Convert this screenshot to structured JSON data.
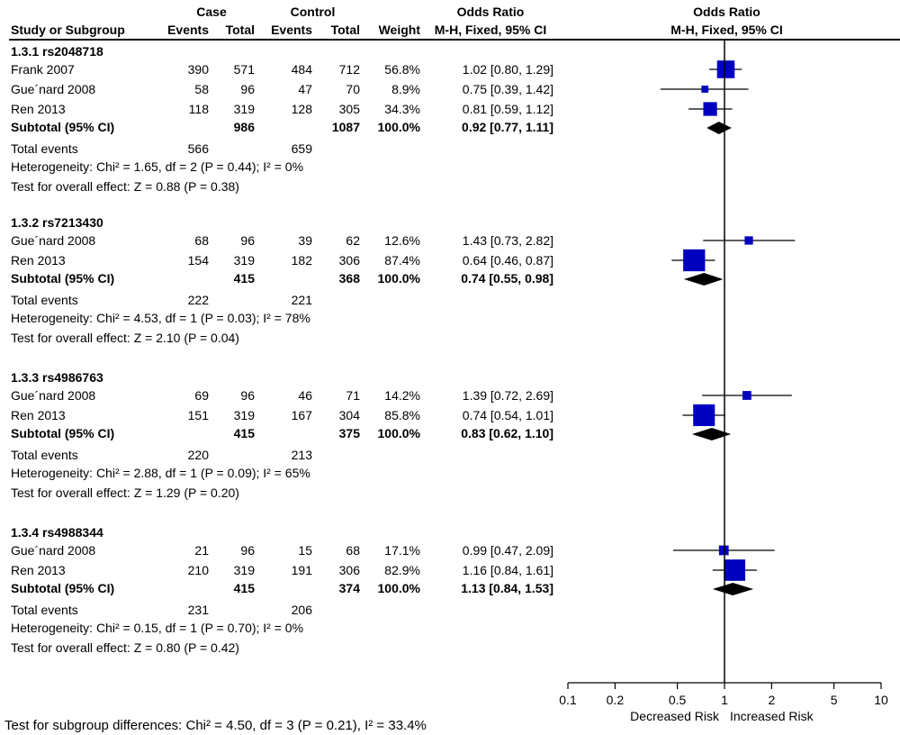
{
  "header": {
    "study_col": "Study or Subgroup",
    "case": "Case",
    "control": "Control",
    "events": "Events",
    "total": "Total",
    "weight": "Weight",
    "or_title": "Odds Ratio",
    "or_method": "M-H, Fixed, 95% CI",
    "plot_title": "Odds Ratio",
    "plot_method": "M-H, Fixed, 95% CI"
  },
  "chart_data": {
    "type": "forest",
    "x_scale": "log",
    "xlim": [
      0.1,
      10
    ],
    "null_line": 1,
    "x_ticks": [
      0.1,
      0.2,
      0.5,
      1,
      2,
      5,
      10
    ],
    "x_tick_labels": [
      "0.1",
      "0.2",
      "0.5",
      "1",
      "2",
      "5",
      "10"
    ],
    "left_label": "Decreased Risk",
    "right_label": "Increased Risk",
    "colors": {
      "study_marker": "#0000c0",
      "summary_diamond": "#000000"
    },
    "subgroups": [
      {
        "name": "1.3.1 rs2048718",
        "studies": [
          {
            "name": "Frank 2007",
            "case_events": "390",
            "case_total": "571",
            "control_events": "484",
            "control_total": "712",
            "weight": "56.8%",
            "or_text": "1.02 [0.80, 1.29]",
            "or": 1.02,
            "lo": 0.8,
            "hi": 1.29
          },
          {
            "name": "Gue´nard 2008",
            "case_events": "58",
            "case_total": "96",
            "control_events": "47",
            "control_total": "70",
            "weight": "8.9%",
            "or_text": "0.75 [0.39, 1.42]",
            "or": 0.75,
            "lo": 0.39,
            "hi": 1.42
          },
          {
            "name": "Ren 2013",
            "case_events": "118",
            "case_total": "319",
            "control_events": "128",
            "control_total": "305",
            "weight": "34.3%",
            "or_text": "0.81 [0.59, 1.12]",
            "or": 0.81,
            "lo": 0.59,
            "hi": 1.12
          }
        ],
        "subtotal": {
          "label": "Subtotal (95% CI)",
          "case_total": "986",
          "control_total": "1087",
          "weight": "100.0%",
          "or_text": "0.92 [0.77, 1.11]",
          "or": 0.92,
          "lo": 0.77,
          "hi": 1.11
        },
        "total_events": {
          "label": "Total events",
          "case": "566",
          "control": "659"
        },
        "heterogeneity": "Heterogeneity: Chi² = 1.65, df = 2 (P = 0.44); I² = 0%",
        "overall_effect": "Test for overall effect: Z = 0.88 (P = 0.38)"
      },
      {
        "name": "1.3.2 rs7213430",
        "studies": [
          {
            "name": "Gue´nard 2008",
            "case_events": "68",
            "case_total": "96",
            "control_events": "39",
            "control_total": "62",
            "weight": "12.6%",
            "or_text": "1.43 [0.73, 2.82]",
            "or": 1.43,
            "lo": 0.73,
            "hi": 2.82
          },
          {
            "name": "Ren 2013",
            "case_events": "154",
            "case_total": "319",
            "control_events": "182",
            "control_total": "306",
            "weight": "87.4%",
            "or_text": "0.64 [0.46, 0.87]",
            "or": 0.64,
            "lo": 0.46,
            "hi": 0.87
          }
        ],
        "subtotal": {
          "label": "Subtotal (95% CI)",
          "case_total": "415",
          "control_total": "368",
          "weight": "100.0%",
          "or_text": "0.74 [0.55, 0.98]",
          "or": 0.74,
          "lo": 0.55,
          "hi": 0.98
        },
        "total_events": {
          "label": "Total events",
          "case": "222",
          "control": "221"
        },
        "heterogeneity": "Heterogeneity: Chi² = 4.53, df = 1 (P = 0.03); I² = 78%",
        "overall_effect": "Test for overall effect: Z = 2.10 (P = 0.04)"
      },
      {
        "name": "1.3.3 rs4986763",
        "studies": [
          {
            "name": "Gue´nard 2008",
            "case_events": "69",
            "case_total": "96",
            "control_events": "46",
            "control_total": "71",
            "weight": "14.2%",
            "or_text": "1.39 [0.72, 2.69]",
            "or": 1.39,
            "lo": 0.72,
            "hi": 2.69
          },
          {
            "name": "Ren 2013",
            "case_events": "151",
            "case_total": "319",
            "control_events": "167",
            "control_total": "304",
            "weight": "85.8%",
            "or_text": "0.74 [0.54, 1.01]",
            "or": 0.74,
            "lo": 0.54,
            "hi": 1.01
          }
        ],
        "subtotal": {
          "label": "Subtotal (95% CI)",
          "case_total": "415",
          "control_total": "375",
          "weight": "100.0%",
          "or_text": "0.83 [0.62, 1.10]",
          "or": 0.83,
          "lo": 0.62,
          "hi": 1.1
        },
        "total_events": {
          "label": "Total events",
          "case": "220",
          "control": "213"
        },
        "heterogeneity": "Heterogeneity: Chi² = 2.88, df = 1 (P = 0.09); I² = 65%",
        "overall_effect": "Test for overall effect: Z = 1.29 (P = 0.20)"
      },
      {
        "name": "1.3.4 rs4988344",
        "studies": [
          {
            "name": "Gue´nard 2008",
            "case_events": "21",
            "case_total": "96",
            "control_events": "15",
            "control_total": "68",
            "weight": "17.1%",
            "or_text": "0.99 [0.47, 2.09]",
            "or": 0.99,
            "lo": 0.47,
            "hi": 2.09
          },
          {
            "name": "Ren 2013",
            "case_events": "210",
            "case_total": "319",
            "control_events": "191",
            "control_total": "306",
            "weight": "82.9%",
            "or_text": "1.16 [0.84, 1.61]",
            "or": 1.16,
            "lo": 0.84,
            "hi": 1.61
          }
        ],
        "subtotal": {
          "label": "Subtotal (95% CI)",
          "case_total": "415",
          "control_total": "374",
          "weight": "100.0%",
          "or_text": "1.13 [0.84, 1.53]",
          "or": 1.13,
          "lo": 0.84,
          "hi": 1.53
        },
        "total_events": {
          "label": "Total events",
          "case": "231",
          "control": "206"
        },
        "heterogeneity": "Heterogeneity: Chi² = 0.15, df = 1 (P = 0.70); I² = 0%",
        "overall_effect": "Test for overall effect: Z = 0.80 (P = 0.42)"
      }
    ],
    "subgroup_differences": "Test for subgroup differences: Chi² = 4.50, df = 3 (P = 0.21), I² = 33.4%"
  }
}
